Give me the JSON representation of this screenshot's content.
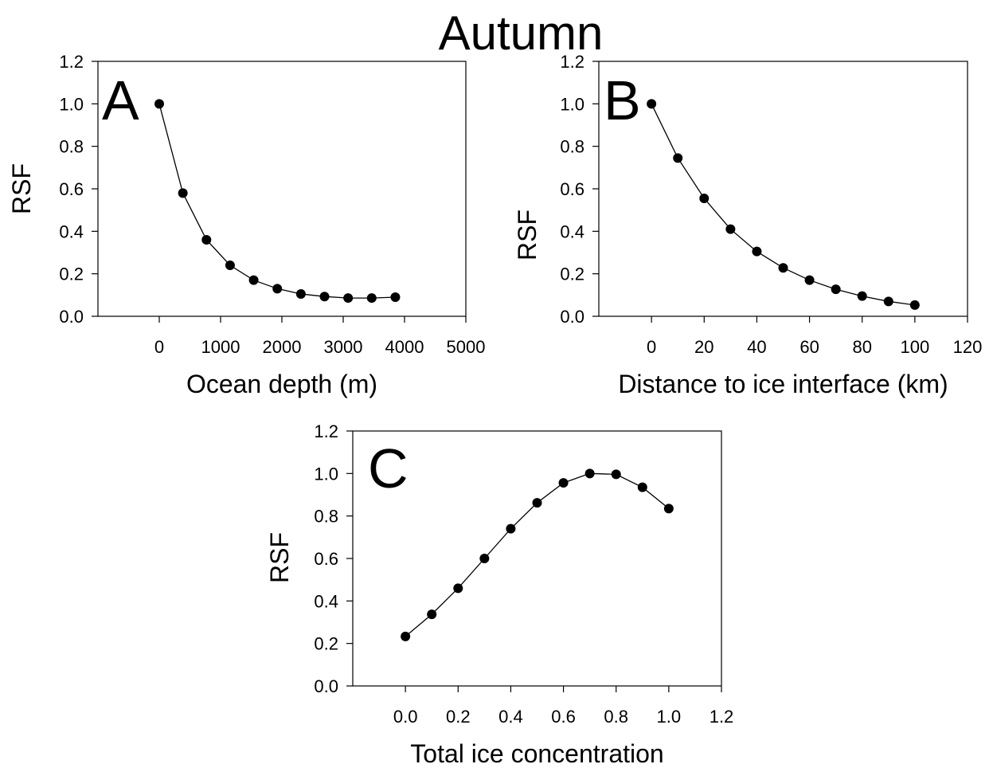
{
  "figure_title": "Autumn",
  "chart_data": [
    {
      "type": "line",
      "panel_letter": "A",
      "xlabel": "Ocean depth (m)",
      "ylabel": "RSF",
      "xlim": [
        -1000,
        5000
      ],
      "ylim": [
        0,
        1.2
      ],
      "xticks": [
        0,
        1000,
        2000,
        3000,
        4000,
        5000
      ],
      "yticks": [
        0.0,
        0.2,
        0.4,
        0.6,
        0.8,
        1.0,
        1.2
      ],
      "xtick_labels": [
        "0",
        "1000",
        "2000",
        "3000",
        "4000",
        "5000"
      ],
      "ytick_labels": [
        "0.0",
        "0.2",
        "0.4",
        "0.6",
        "0.8",
        "1.0",
        "1.2"
      ],
      "grid": false,
      "series": [
        {
          "x": [
            0,
            385,
            770,
            1155,
            1540,
            1925,
            2310,
            2695,
            3080,
            3465,
            3850
          ],
          "y": [
            1.0,
            0.58,
            0.36,
            0.24,
            0.17,
            0.13,
            0.105,
            0.093,
            0.086,
            0.086,
            0.09
          ]
        }
      ]
    },
    {
      "type": "line",
      "panel_letter": "B",
      "xlabel": "Distance to ice interface (km)",
      "ylabel": "RSF",
      "xlim": [
        -20,
        120
      ],
      "ylim": [
        0,
        1.2
      ],
      "xticks": [
        0,
        20,
        40,
        60,
        80,
        100,
        120
      ],
      "yticks": [
        0.0,
        0.2,
        0.4,
        0.6,
        0.8,
        1.0,
        1.2
      ],
      "xtick_labels": [
        "0",
        "20",
        "40",
        "60",
        "80",
        "100",
        "120"
      ],
      "ytick_labels": [
        "0.0",
        "0.2",
        "0.4",
        "0.6",
        "0.8",
        "1.0",
        "1.2"
      ],
      "grid": false,
      "series": [
        {
          "x": [
            0,
            10,
            20,
            30,
            40,
            50,
            60,
            70,
            80,
            90,
            100
          ],
          "y": [
            1.0,
            0.745,
            0.555,
            0.41,
            0.305,
            0.228,
            0.17,
            0.127,
            0.095,
            0.07,
            0.053
          ]
        }
      ]
    },
    {
      "type": "line",
      "panel_letter": "C",
      "xlabel": "Total ice concentration",
      "ylabel": "RSF",
      "xlim": [
        -0.2,
        1.2
      ],
      "ylim": [
        0,
        1.2
      ],
      "xticks": [
        0.0,
        0.2,
        0.4,
        0.6,
        0.8,
        1.0,
        1.2
      ],
      "yticks": [
        0.0,
        0.2,
        0.4,
        0.6,
        0.8,
        1.0,
        1.2
      ],
      "xtick_labels": [
        "0.0",
        "0.2",
        "0.4",
        "0.6",
        "0.8",
        "1.0",
        "1.2"
      ],
      "ytick_labels": [
        "0.0",
        "0.2",
        "0.4",
        "0.6",
        "0.8",
        "1.0",
        "1.2"
      ],
      "grid": false,
      "series": [
        {
          "x": [
            0.0,
            0.1,
            0.2,
            0.3,
            0.4,
            0.5,
            0.6,
            0.7,
            0.8,
            0.9,
            1.0
          ],
          "y": [
            0.233,
            0.337,
            0.46,
            0.6,
            0.74,
            0.862,
            0.956,
            1.0,
            0.996,
            0.935,
            0.835
          ]
        }
      ]
    }
  ]
}
